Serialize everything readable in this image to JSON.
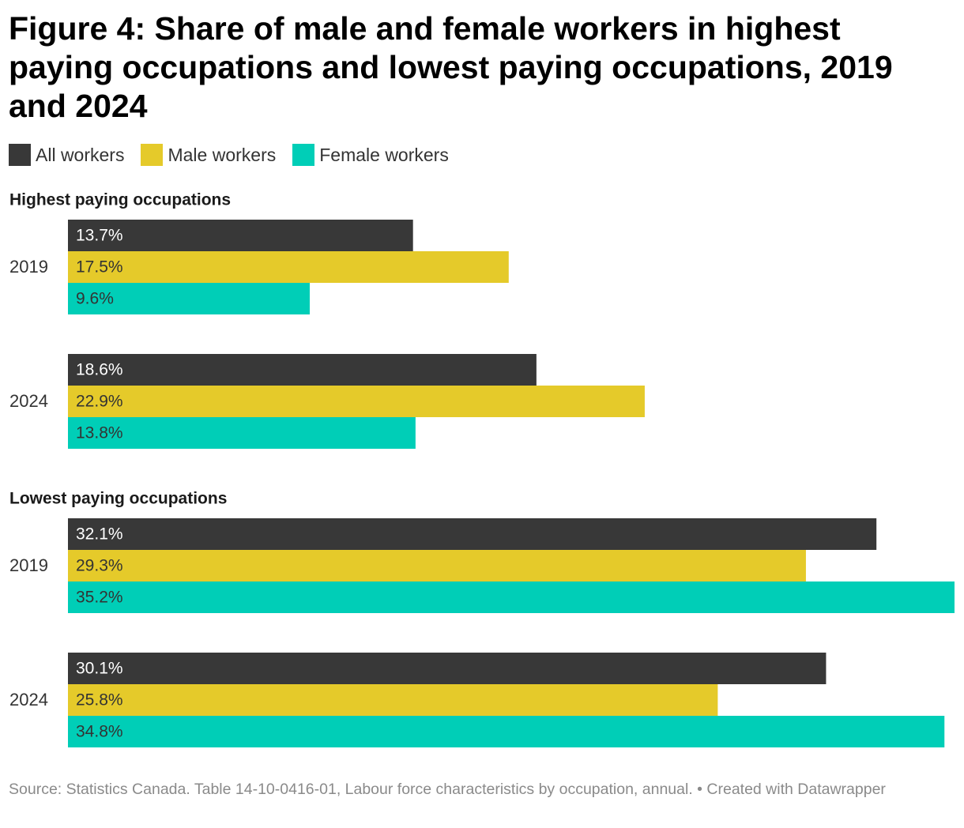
{
  "title": "Figure 4: Share of male and female workers in highest paying occupations and lowest paying occupations, 2019 and 2024",
  "source": "Source: Statistics Canada. Table 14-10-0416-01, Labour force characteristics by occupation, annual. • Created with Datawrapper",
  "chart_data": {
    "type": "bar",
    "orientation": "horizontal",
    "title": "Figure 4: Share of male and female workers in highest paying occupations and lowest paying occupations, 2019 and 2024",
    "legend": [
      "All workers",
      "Male workers",
      "Female workers"
    ],
    "legend_position": "top-left",
    "colors": {
      "All workers": "#383838",
      "Male workers": "#e5ca2a",
      "Female workers": "#00ceb7"
    },
    "value_suffix": "%",
    "xlim": [
      0,
      35.2
    ],
    "grid": false,
    "groups": [
      {
        "label": "Highest paying occupations",
        "categories": [
          "2019",
          "2024"
        ],
        "series": [
          {
            "name": "All workers",
            "values": [
              13.7,
              18.6
            ]
          },
          {
            "name": "Male workers",
            "values": [
              17.5,
              22.9
            ]
          },
          {
            "name": "Female workers",
            "values": [
              9.6,
              13.8
            ]
          }
        ]
      },
      {
        "label": "Lowest paying occupations",
        "categories": [
          "2019",
          "2024"
        ],
        "series": [
          {
            "name": "All workers",
            "values": [
              32.1,
              30.1
            ]
          },
          {
            "name": "Male workers",
            "values": [
              29.3,
              25.8
            ]
          },
          {
            "name": "Female workers",
            "values": [
              35.2,
              34.8
            ]
          }
        ]
      }
    ]
  }
}
